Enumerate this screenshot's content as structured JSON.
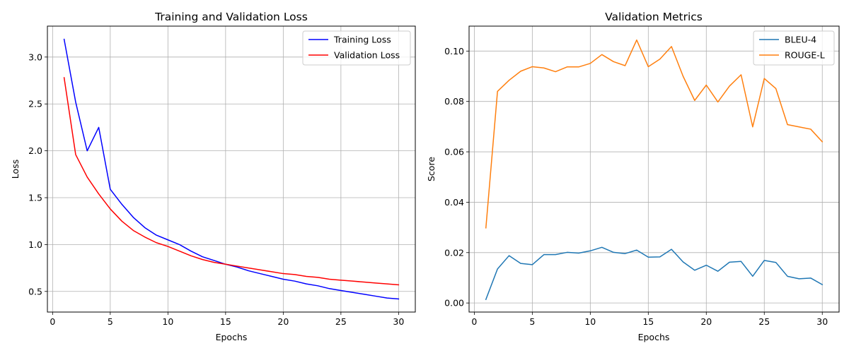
{
  "chart_data": [
    {
      "type": "line",
      "title": "Training and Validation Loss",
      "xlabel": "Epochs",
      "ylabel": "Loss",
      "xlim": [
        -0.45,
        31.45
      ],
      "ylim": [
        0.28,
        3.33
      ],
      "xticks": [
        0,
        5,
        10,
        15,
        20,
        25,
        30
      ],
      "yticks": [
        0.5,
        1.0,
        1.5,
        2.0,
        2.5,
        3.0
      ],
      "xtick_labels": [
        "0",
        "5",
        "10",
        "15",
        "20",
        "25",
        "30"
      ],
      "ytick_labels": [
        "0.5",
        "1.0",
        "1.5",
        "2.0",
        "2.5",
        "3.0"
      ],
      "grid": true,
      "legend_position": "top-right",
      "x": [
        1,
        2,
        3,
        4,
        5,
        6,
        7,
        8,
        9,
        10,
        11,
        12,
        13,
        14,
        15,
        16,
        17,
        18,
        19,
        20,
        21,
        22,
        23,
        24,
        25,
        26,
        27,
        28,
        29,
        30
      ],
      "series": [
        {
          "name": "Training Loss",
          "color": "#0000ff",
          "values": [
            3.19,
            2.52,
            2.0,
            2.25,
            1.59,
            1.43,
            1.29,
            1.18,
            1.1,
            1.05,
            1.0,
            0.93,
            0.87,
            0.83,
            0.79,
            0.76,
            0.72,
            0.69,
            0.66,
            0.63,
            0.61,
            0.58,
            0.56,
            0.53,
            0.51,
            0.49,
            0.47,
            0.45,
            0.43,
            0.42
          ]
        },
        {
          "name": "Validation Loss",
          "color": "#ff0000",
          "values": [
            2.78,
            1.96,
            1.72,
            1.54,
            1.38,
            1.25,
            1.15,
            1.08,
            1.02,
            0.98,
            0.93,
            0.88,
            0.84,
            0.81,
            0.79,
            0.77,
            0.75,
            0.73,
            0.71,
            0.69,
            0.68,
            0.66,
            0.65,
            0.63,
            0.62,
            0.61,
            0.6,
            0.59,
            0.58,
            0.57
          ]
        }
      ]
    },
    {
      "type": "line",
      "title": "Validation Metrics",
      "xlabel": "Epochs",
      "ylabel": "Score",
      "xlim": [
        -0.45,
        31.45
      ],
      "ylim": [
        -0.0036,
        0.1099
      ],
      "xticks": [
        0,
        5,
        10,
        15,
        20,
        25,
        30
      ],
      "yticks": [
        0.0,
        0.02,
        0.04,
        0.06,
        0.08,
        0.1
      ],
      "xtick_labels": [
        "0",
        "5",
        "10",
        "15",
        "20",
        "25",
        "30"
      ],
      "ytick_labels": [
        "0.00",
        "0.02",
        "0.04",
        "0.06",
        "0.08",
        "0.10"
      ],
      "grid": true,
      "legend_position": "top-right",
      "x": [
        1,
        2,
        3,
        4,
        5,
        6,
        7,
        8,
        9,
        10,
        11,
        12,
        13,
        14,
        15,
        16,
        17,
        18,
        19,
        20,
        21,
        22,
        23,
        24,
        25,
        26,
        27,
        28,
        29,
        30
      ],
      "series": [
        {
          "name": "BLEU-4",
          "color": "#1f77b4",
          "values": [
            0.0014,
            0.0135,
            0.0188,
            0.0157,
            0.0152,
            0.0192,
            0.0192,
            0.0201,
            0.0198,
            0.0207,
            0.0221,
            0.0201,
            0.0196,
            0.021,
            0.0182,
            0.0183,
            0.0213,
            0.0163,
            0.013,
            0.015,
            0.0126,
            0.0162,
            0.0165,
            0.0106,
            0.0169,
            0.0161,
            0.0106,
            0.0096,
            0.0099,
            0.0073
          ]
        },
        {
          "name": "ROUGE-L",
          "color": "#ff7f0e",
          "values": [
            0.0298,
            0.084,
            0.0884,
            0.092,
            0.0938,
            0.0933,
            0.0918,
            0.0937,
            0.0937,
            0.0951,
            0.0986,
            0.0958,
            0.0942,
            0.1044,
            0.0938,
            0.0968,
            0.1018,
            0.09,
            0.0804,
            0.0865,
            0.0798,
            0.0861,
            0.0906,
            0.0699,
            0.0891,
            0.0851,
            0.0708,
            0.0699,
            0.069,
            0.064
          ]
        }
      ]
    }
  ]
}
